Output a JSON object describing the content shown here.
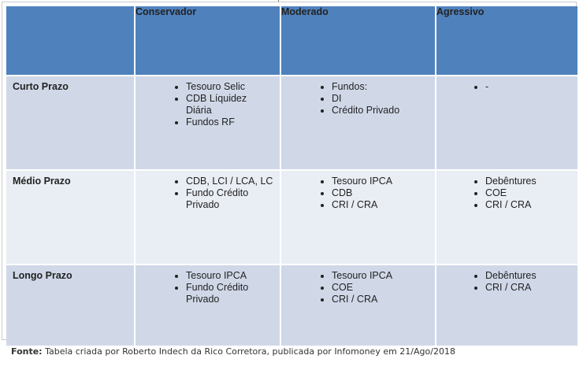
{
  "table": {
    "headers": [
      "",
      "Conservador",
      "Moderado",
      "Agressivo"
    ],
    "rows": [
      {
        "label": "Curto Prazo",
        "cells": [
          [
            "Tesouro Selic",
            "CDB Líquidez Diária",
            "Fundos RF"
          ],
          [
            "Fundos:",
            "DI",
            "Crédito Privado"
          ],
          [
            "-"
          ]
        ]
      },
      {
        "label": "Médio Prazo",
        "cells": [
          [
            "CDB, LCI / LCA, LC",
            "Fundo Crédito Privado"
          ],
          [
            "Tesouro IPCA",
            "CDB",
            "CRI / CRA"
          ],
          [
            "Debêntures",
            "COE",
            "CRI / CRA"
          ]
        ]
      },
      {
        "label": "Longo Prazo",
        "cells": [
          [
            "Tesouro IPCA",
            "Fundo Crédito Privado"
          ],
          [
            "Tesouro IPCA",
            "COE",
            "CRI / CRA"
          ],
          [
            "Debêntures",
            "CRI / CRA"
          ]
        ]
      }
    ]
  },
  "footer": {
    "label": "Fonte:",
    "text": " Tabela criada por Roberto Indech da Rico Corretora, publicada por Infomoney em 21/Ago/2018"
  },
  "colors": {
    "header_bg": "#4f81bd",
    "row_dark": "#d0d8e8",
    "row_light": "#e9edf4"
  }
}
